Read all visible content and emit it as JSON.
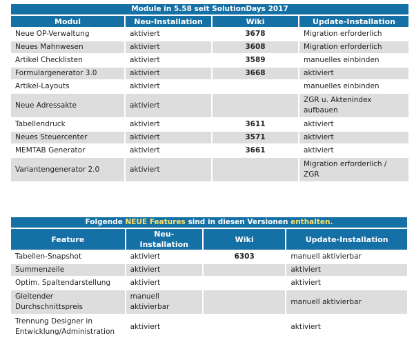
{
  "table1": {
    "title": "Module in 5.58 seit SolutionDays 2017",
    "headers": [
      "Modul",
      "Neu-Installation",
      "Wiki",
      "Update-Installation"
    ],
    "rows": [
      {
        "name": "Neue OP-Verwaltung",
        "install": "aktiviert",
        "wiki": "3678",
        "update": "Migration erforderlich"
      },
      {
        "name": "Neues Mahnwesen",
        "install": "aktiviert",
        "wiki": "3608",
        "update": "Migration erforderlich"
      },
      {
        "name": "Artikel Checklisten",
        "install": "aktiviert",
        "wiki": "3589",
        "update": "manuelles einbinden"
      },
      {
        "name": "Formulargenerator 3.0",
        "install": "aktiviert",
        "wiki": "3668",
        "update": "aktiviert"
      },
      {
        "name": "Artikel-Layouts",
        "install": "aktiviert",
        "wiki": "",
        "update": "manuelles einbinden"
      },
      {
        "name": "Neue Adressakte",
        "install": "aktiviert",
        "wiki": "",
        "update": "ZGR u. Aktenindex aufbauen"
      },
      {
        "name": "Tabellendruck",
        "install": "aktiviert",
        "wiki": "3611",
        "update": "aktiviert"
      },
      {
        "name": "Neues Steuercenter",
        "install": "aktiviert",
        "wiki": "3571",
        "update": "aktiviert"
      },
      {
        "name": "MEMTAB Generator",
        "install": "aktiviert",
        "wiki": "3661",
        "update": "aktiviert"
      },
      {
        "name": "Variantengenerator 2.0",
        "install": "aktiviert",
        "wiki": "",
        "update": "Migration erforderlich / ZGR"
      }
    ]
  },
  "table2": {
    "title_pre": "Folgende ",
    "title_hl1": "NEUE Features",
    "title_mid": " sind in diesen Versionen ",
    "title_hl2": "enthalten.",
    "headers": [
      "Feature",
      "Neu-Installation",
      "Wiki",
      "Update-Installation"
    ],
    "rows": [
      {
        "name": "Tabellen-Snapshot",
        "install": "aktiviert",
        "wiki": "6303",
        "update": "manuell aktivierbar"
      },
      {
        "name": "Summenzeile",
        "install": "aktiviert",
        "wiki": "",
        "update": "aktiviert"
      },
      {
        "name": "Optim. Spaltendarstellung",
        "install": "aktiviert",
        "wiki": "",
        "update": "aktiviert"
      },
      {
        "name": "Gleitender Durchschnittspreis",
        "install": "manuell aktivierbar",
        "wiki": "",
        "update": "manuell aktivierbar"
      },
      {
        "name": "Trennung Designer in Entwicklung/Administration",
        "install": "aktiviert",
        "wiki": "",
        "update": "aktiviert"
      }
    ]
  }
}
